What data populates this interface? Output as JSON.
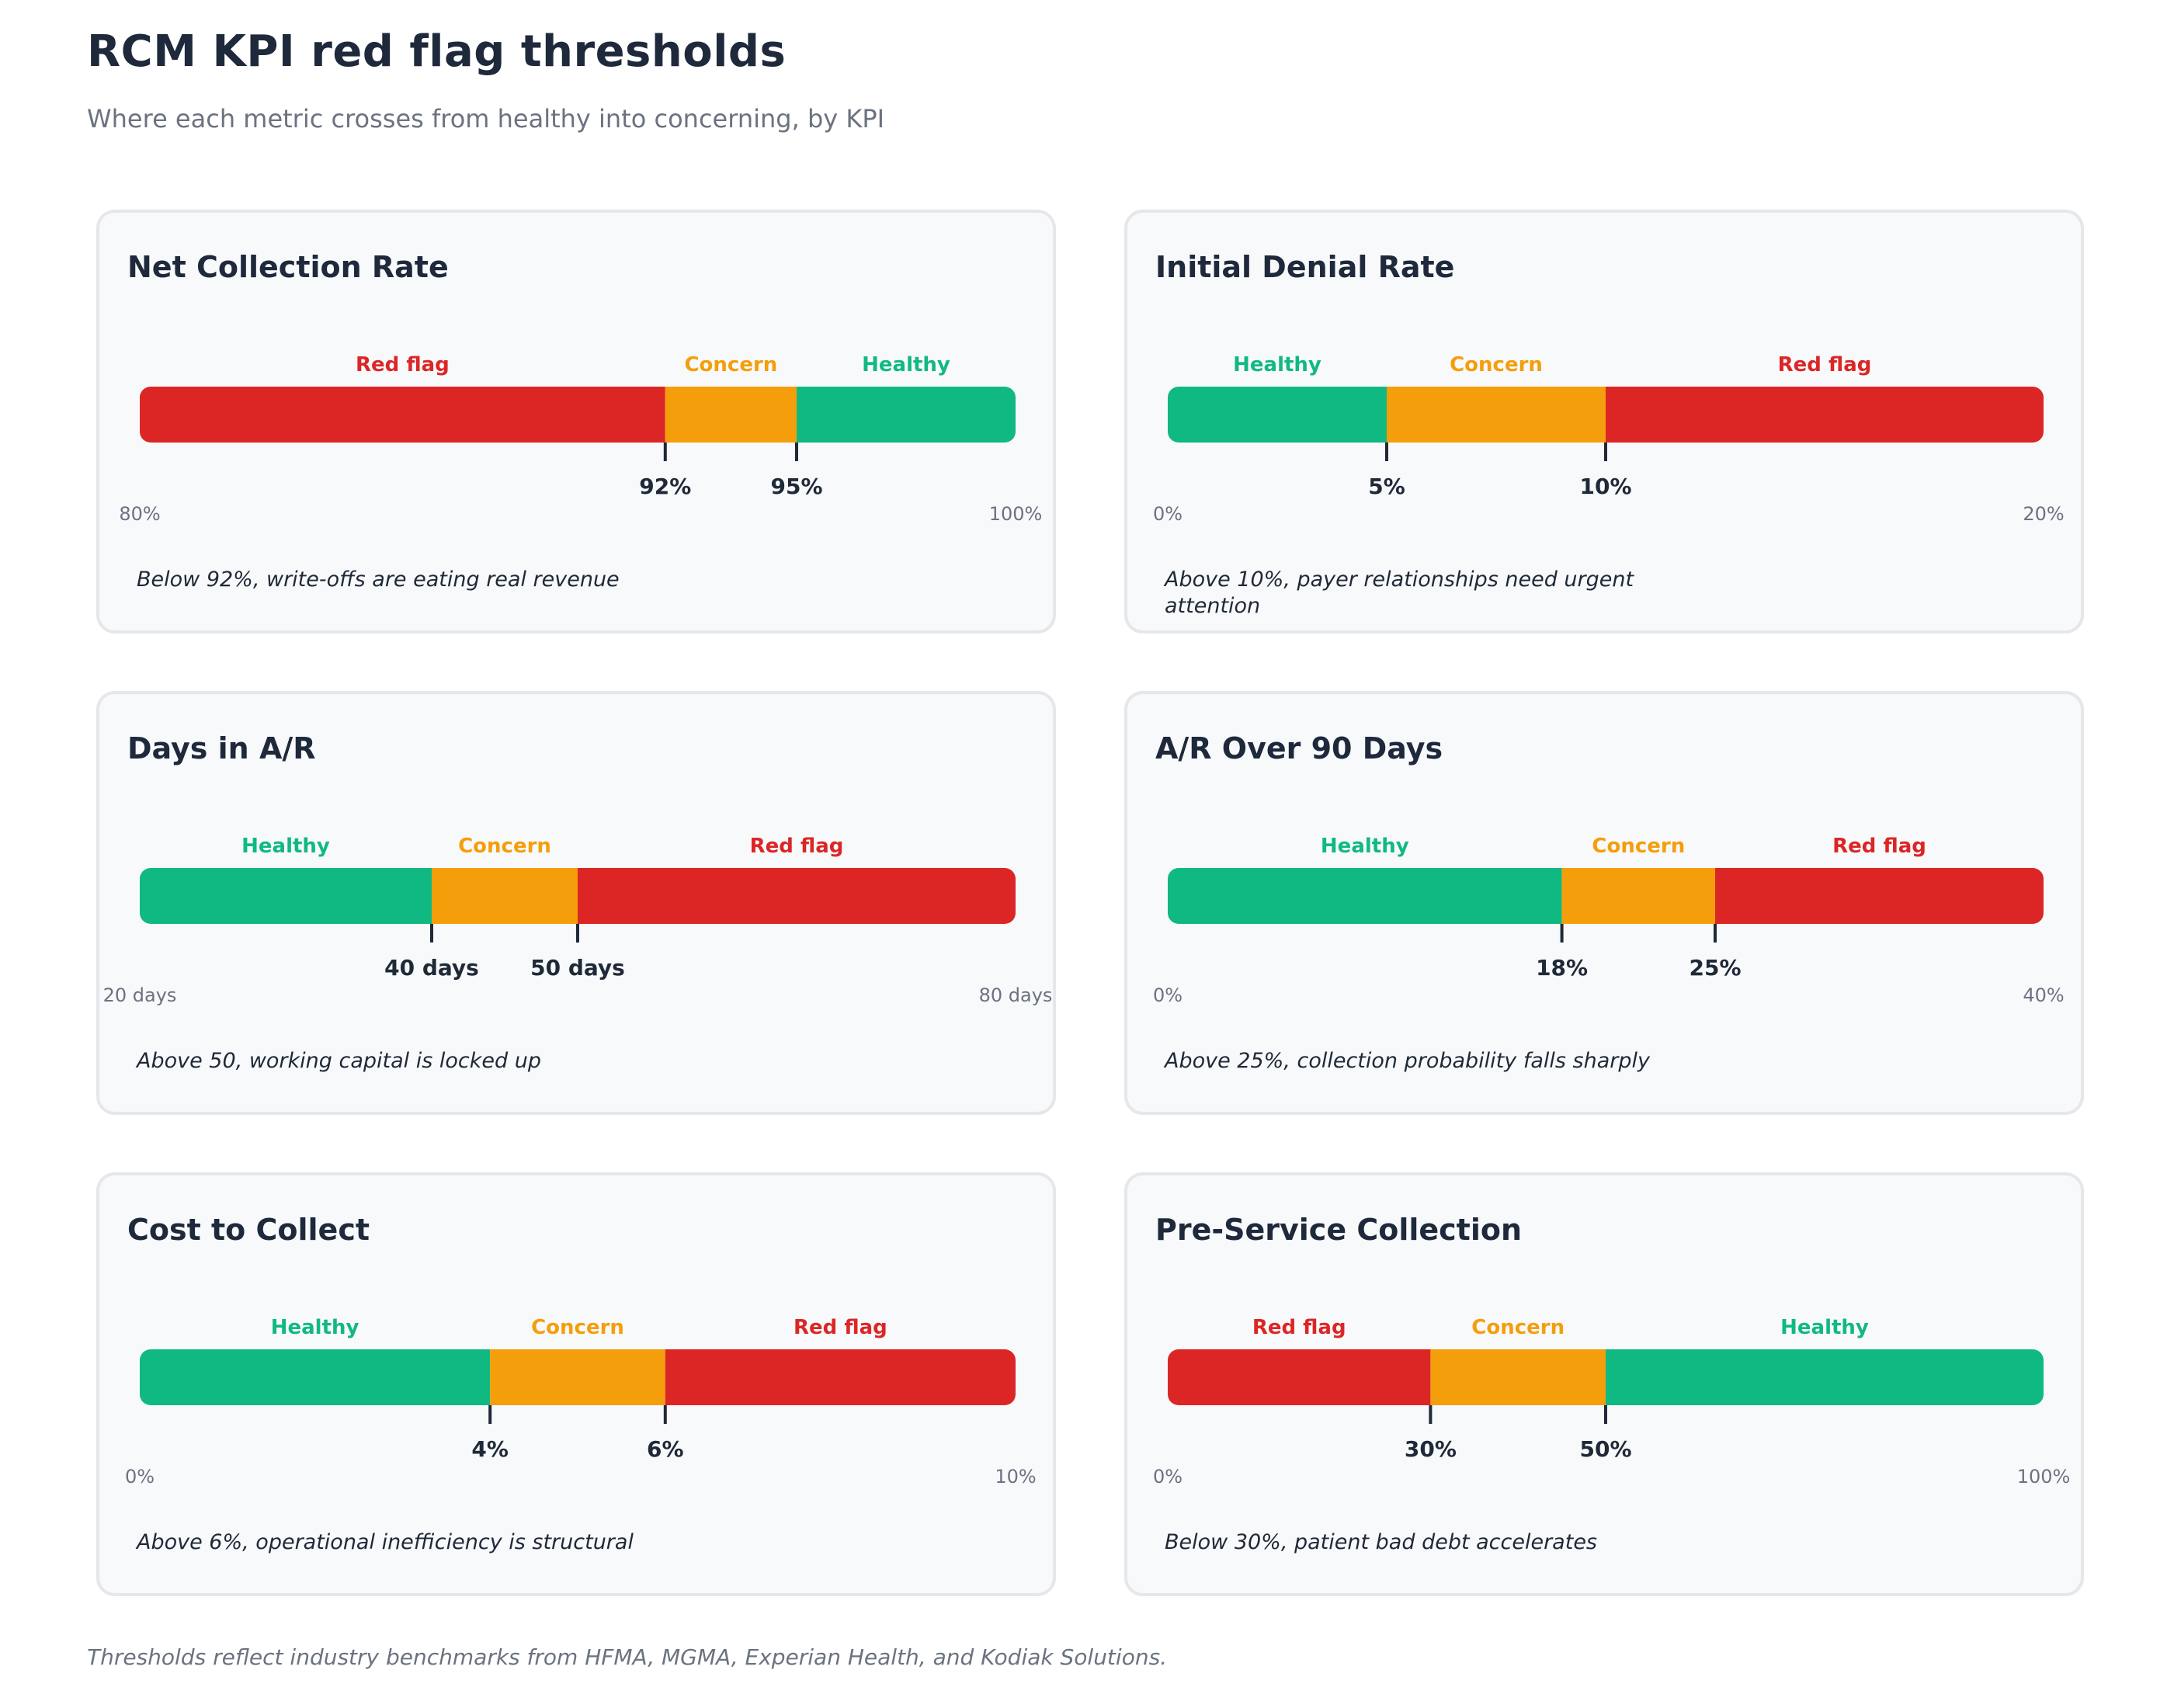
{
  "title": "RCM KPI red flag thresholds",
  "subtitle": "Where each metric crosses from healthy into concerning, by KPI",
  "footnote": "Thresholds reflect industry benchmarks from HFMA, MGMA, Experian Health, and Kodiak Solutions.",
  "colors": {
    "red": "#dc2626",
    "amber": "#f59e0b",
    "green": "#10b981"
  },
  "chart_data": [
    {
      "type": "bar",
      "title": "Net Collection Rate",
      "range": [
        80,
        100
      ],
      "range_labels": [
        "80%",
        "100%"
      ],
      "segments": [
        {
          "label": "Red flag",
          "status": "red",
          "from": 80,
          "to": 92
        },
        {
          "label": "Concern",
          "status": "amber",
          "from": 92,
          "to": 95
        },
        {
          "label": "Healthy",
          "status": "green",
          "from": 95,
          "to": 100
        }
      ],
      "thresholds": [
        {
          "value": 92,
          "label": "92%"
        },
        {
          "value": 95,
          "label": "95%"
        }
      ],
      "note": "Below 92%, write-offs are eating real revenue"
    },
    {
      "type": "bar",
      "title": "Initial Denial Rate",
      "range": [
        0,
        20
      ],
      "range_labels": [
        "0%",
        "20%"
      ],
      "segments": [
        {
          "label": "Healthy",
          "status": "green",
          "from": 0,
          "to": 5
        },
        {
          "label": "Concern",
          "status": "amber",
          "from": 5,
          "to": 10
        },
        {
          "label": "Red flag",
          "status": "red",
          "from": 10,
          "to": 20
        }
      ],
      "thresholds": [
        {
          "value": 5,
          "label": "5%"
        },
        {
          "value": 10,
          "label": "10%"
        }
      ],
      "note": "Above 10%, payer relationships need urgent attention"
    },
    {
      "type": "bar",
      "title": "Days in A/R",
      "range": [
        20,
        80
      ],
      "range_labels": [
        "20 days",
        "80 days"
      ],
      "segments": [
        {
          "label": "Healthy",
          "status": "green",
          "from": 20,
          "to": 40
        },
        {
          "label": "Concern",
          "status": "amber",
          "from": 40,
          "to": 50
        },
        {
          "label": "Red flag",
          "status": "red",
          "from": 50,
          "to": 80
        }
      ],
      "thresholds": [
        {
          "value": 40,
          "label": "40 days"
        },
        {
          "value": 50,
          "label": "50 days"
        }
      ],
      "note": "Above 50, working capital is locked up"
    },
    {
      "type": "bar",
      "title": "A/R Over 90 Days",
      "range": [
        0,
        40
      ],
      "range_labels": [
        "0%",
        "40%"
      ],
      "segments": [
        {
          "label": "Healthy",
          "status": "green",
          "from": 0,
          "to": 18
        },
        {
          "label": "Concern",
          "status": "amber",
          "from": 18,
          "to": 25
        },
        {
          "label": "Red flag",
          "status": "red",
          "from": 25,
          "to": 40
        }
      ],
      "thresholds": [
        {
          "value": 18,
          "label": "18%"
        },
        {
          "value": 25,
          "label": "25%"
        }
      ],
      "note": "Above 25%, collection probability falls sharply"
    },
    {
      "type": "bar",
      "title": "Cost to Collect",
      "range": [
        0,
        10
      ],
      "range_labels": [
        "0%",
        "10%"
      ],
      "segments": [
        {
          "label": "Healthy",
          "status": "green",
          "from": 0,
          "to": 4
        },
        {
          "label": "Concern",
          "status": "amber",
          "from": 4,
          "to": 6
        },
        {
          "label": "Red flag",
          "status": "red",
          "from": 6,
          "to": 10
        }
      ],
      "thresholds": [
        {
          "value": 4,
          "label": "4%"
        },
        {
          "value": 6,
          "label": "6%"
        }
      ],
      "note": "Above 6%, operational inefficiency is structural"
    },
    {
      "type": "bar",
      "title": "Pre-Service Collection",
      "range": [
        0,
        100
      ],
      "range_labels": [
        "0%",
        "100%"
      ],
      "segments": [
        {
          "label": "Red flag",
          "status": "red",
          "from": 0,
          "to": 30
        },
        {
          "label": "Concern",
          "status": "amber",
          "from": 30,
          "to": 50
        },
        {
          "label": "Healthy",
          "status": "green",
          "from": 50,
          "to": 100
        }
      ],
      "thresholds": [
        {
          "value": 30,
          "label": "30%"
        },
        {
          "value": 50,
          "label": "50%"
        }
      ],
      "note": "Below 30%, patient bad debt accelerates"
    }
  ]
}
